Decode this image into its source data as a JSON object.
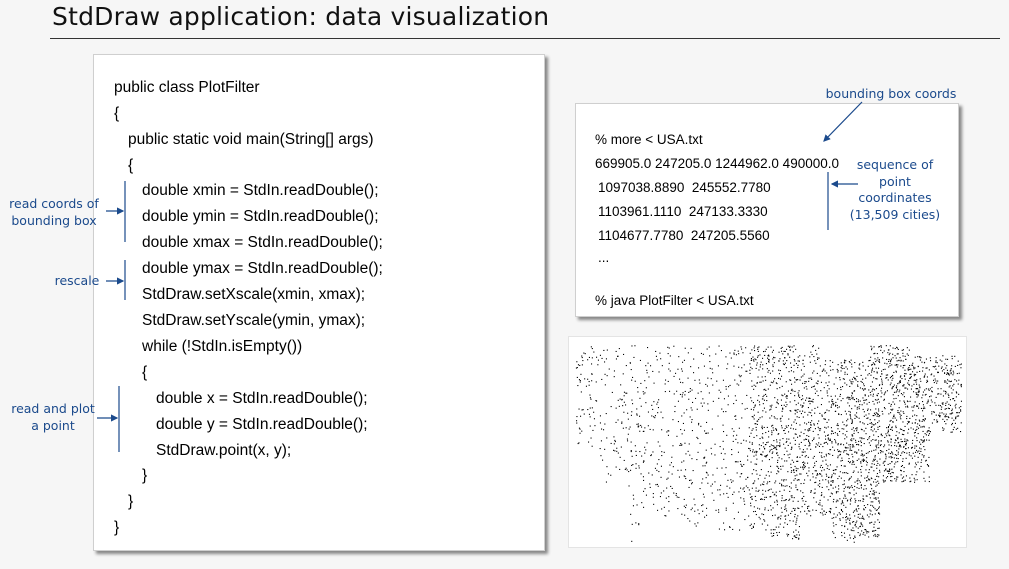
{
  "slide": {
    "title": "StdDraw application: data visualization"
  },
  "code": {
    "lines": [
      "public class PlotFilter",
      "{",
      "public static void main(String[] args)",
      "{",
      "double xmin = StdIn.readDouble();",
      "double ymin = StdIn.readDouble();",
      "double xmax = StdIn.readDouble();",
      "double ymax = StdIn.readDouble();",
      "StdDraw.setXscale(xmin, xmax);",
      "StdDraw.setYscale(ymin, ymax);",
      "while (!StdIn.isEmpty())",
      "{",
      "double x = StdIn.readDouble();",
      "double y = StdIn.readDouble();",
      "StdDraw.point(x, y);",
      "}",
      "}",
      "}"
    ]
  },
  "terminal": {
    "more_cmd": "% more < USA.txt",
    "bbox_line": "669905.0 247205.0 1244962.0 490000.0",
    "points": [
      "1097038.8890  245552.7780",
      "1103961.1110  247133.3330",
      "1104677.7780  247205.5560"
    ],
    "ellipsis": "...",
    "java_cmd": "% java PlotFilter < USA.txt"
  },
  "annotations": {
    "read_bbox": "read coords of bounding box",
    "rescale": "rescale",
    "read_plot": "read and plot a point",
    "bbox_coords": "bounding box coords",
    "sequence": "sequence of point coordinates (13,509 cities)"
  },
  "colors": {
    "annotation": "#1b4a8c",
    "text": "#000000"
  }
}
